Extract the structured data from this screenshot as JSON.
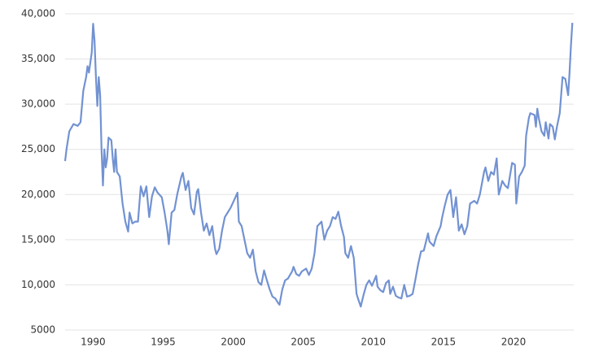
{
  "chart_data": {
    "type": "line",
    "x": [
      1988.0,
      1988.1,
      1988.3,
      1988.6,
      1988.9,
      1989.1,
      1989.3,
      1989.5,
      1989.6,
      1989.7,
      1989.9,
      1990.0,
      1990.1,
      1990.2,
      1990.3,
      1990.4,
      1990.5,
      1990.6,
      1990.7,
      1990.8,
      1990.9,
      1991.0,
      1991.1,
      1991.3,
      1991.4,
      1991.5,
      1991.6,
      1991.7,
      1991.9,
      1992.1,
      1992.3,
      1992.5,
      1992.6,
      1992.8,
      1993.0,
      1993.2,
      1993.4,
      1993.6,
      1993.8,
      1994.0,
      1994.2,
      1994.4,
      1994.6,
      1994.9,
      1995.1,
      1995.3,
      1995.4,
      1995.6,
      1995.8,
      1996.0,
      1996.3,
      1996.4,
      1996.6,
      1996.8,
      1997.0,
      1997.2,
      1997.4,
      1997.5,
      1997.7,
      1997.9,
      1998.1,
      1998.3,
      1998.5,
      1998.7,
      1998.8,
      1999.0,
      1999.2,
      1999.4,
      1999.6,
      1999.8,
      2000.1,
      2000.3,
      2000.4,
      2000.6,
      2000.8,
      2001.0,
      2001.2,
      2001.4,
      2001.6,
      2001.8,
      2002.0,
      2002.2,
      2002.4,
      2002.6,
      2002.8,
      2003.0,
      2003.2,
      2003.3,
      2003.5,
      2003.7,
      2003.9,
      2004.2,
      2004.3,
      2004.5,
      2004.7,
      2004.9,
      2005.2,
      2005.4,
      2005.6,
      2005.8,
      2006.0,
      2006.3,
      2006.5,
      2006.7,
      2006.9,
      2007.1,
      2007.3,
      2007.5,
      2007.7,
      2007.9,
      2008.0,
      2008.2,
      2008.4,
      2008.6,
      2008.8,
      2008.9,
      2009.1,
      2009.3,
      2009.5,
      2009.7,
      2009.9,
      2010.2,
      2010.3,
      2010.5,
      2010.7,
      2010.9,
      2011.1,
      2011.2,
      2011.4,
      2011.6,
      2011.8,
      2012.0,
      2012.2,
      2012.4,
      2012.6,
      2012.8,
      2013.0,
      2013.2,
      2013.4,
      2013.6,
      2013.9,
      2014.0,
      2014.3,
      2014.5,
      2014.8,
      2014.9,
      2015.1,
      2015.3,
      2015.5,
      2015.7,
      2015.9,
      2016.1,
      2016.3,
      2016.5,
      2016.7,
      2016.9,
      2017.2,
      2017.4,
      2017.6,
      2017.9,
      2018.0,
      2018.2,
      2018.4,
      2018.6,
      2018.8,
      2018.95,
      2019.2,
      2019.4,
      2019.6,
      2019.9,
      2020.1,
      2020.2,
      2020.4,
      2020.6,
      2020.8,
      2020.9,
      2021.1,
      2021.2,
      2021.5,
      2021.6,
      2021.7,
      2021.8,
      2022.0,
      2022.2,
      2022.3,
      2022.5,
      2022.6,
      2022.8,
      2022.95,
      2023.1,
      2023.3,
      2023.4,
      2023.5,
      2023.7,
      2023.9,
      2024.0,
      2024.1,
      2024.2
    ],
    "values": [
      23700,
      25000,
      27000,
      27800,
      27600,
      28000,
      31500,
      33000,
      34200,
      33500,
      35700,
      38900,
      37000,
      33000,
      29800,
      33000,
      31000,
      25000,
      21000,
      25000,
      23000,
      24000,
      26300,
      26000,
      24000,
      22500,
      25000,
      22500,
      22000,
      19000,
      17000,
      15900,
      18000,
      16800,
      17000,
      17000,
      20900,
      19800,
      20900,
      17500,
      19800,
      20800,
      20200,
      19700,
      18000,
      16000,
      14500,
      18000,
      18300,
      20000,
      22000,
      22400,
      20500,
      21500,
      18500,
      17800,
      20300,
      20600,
      18000,
      16000,
      16800,
      15500,
      16500,
      14000,
      13400,
      14000,
      16000,
      17500,
      18000,
      18500,
      19500,
      20200,
      17000,
      16500,
      15000,
      13500,
      13000,
      13900,
      11500,
      10300,
      10000,
      11600,
      10500,
      9500,
      8700,
      8500,
      8000,
      7800,
      9500,
      10500,
      10700,
      11500,
      12000,
      11200,
      11000,
      11500,
      11800,
      11100,
      11800,
      13500,
      16500,
      17000,
      15000,
      16000,
      16500,
      17500,
      17300,
      18100,
      16500,
      15300,
      13500,
      13000,
      14300,
      13000,
      9000,
      8500,
      7600,
      8900,
      10000,
      10500,
      9900,
      11000,
      9800,
      9400,
      9200,
      10200,
      10500,
      9000,
      9800,
      8800,
      8600,
      8500,
      10000,
      8700,
      8800,
      9000,
      10600,
      12300,
      13700,
      13800,
      15700,
      14800,
      14300,
      15400,
      16500,
      17400,
      18800,
      20000,
      20500,
      17500,
      19700,
      16000,
      16700,
      15600,
      16500,
      19000,
      19300,
      19000,
      20000,
      22500,
      23000,
      21500,
      22500,
      22200,
      24000,
      20000,
      21500,
      21000,
      20700,
      23500,
      23300,
      19000,
      22000,
      22500,
      23200,
      26500,
      28500,
      29000,
      28800,
      27500,
      29500,
      28500,
      27000,
      26500,
      28000,
      26200,
      27800,
      27500,
      26100,
      27500,
      29000,
      31000,
      33000,
      32800,
      31000,
      33500,
      36500,
      39000
    ],
    "color": "#7292d2",
    "xlim": [
      1988,
      2024.3
    ],
    "xticks": [
      1990,
      1995,
      2000,
      2005,
      2010,
      2015,
      2020
    ],
    "ylim": [
      5000,
      40000
    ],
    "yticks": [
      5000,
      {
        "value": 10000,
        "label": "10,000"
      },
      {
        "value": 15000,
        "label": "15,000"
      },
      {
        "value": 20000,
        "label": "20,000"
      },
      {
        "value": 25000,
        "label": "25,000"
      },
      {
        "value": 30000,
        "label": "30,000"
      },
      {
        "value": 35000,
        "label": "35,000"
      },
      {
        "value": 40000,
        "label": "40,000"
      }
    ],
    "grid": true
  }
}
